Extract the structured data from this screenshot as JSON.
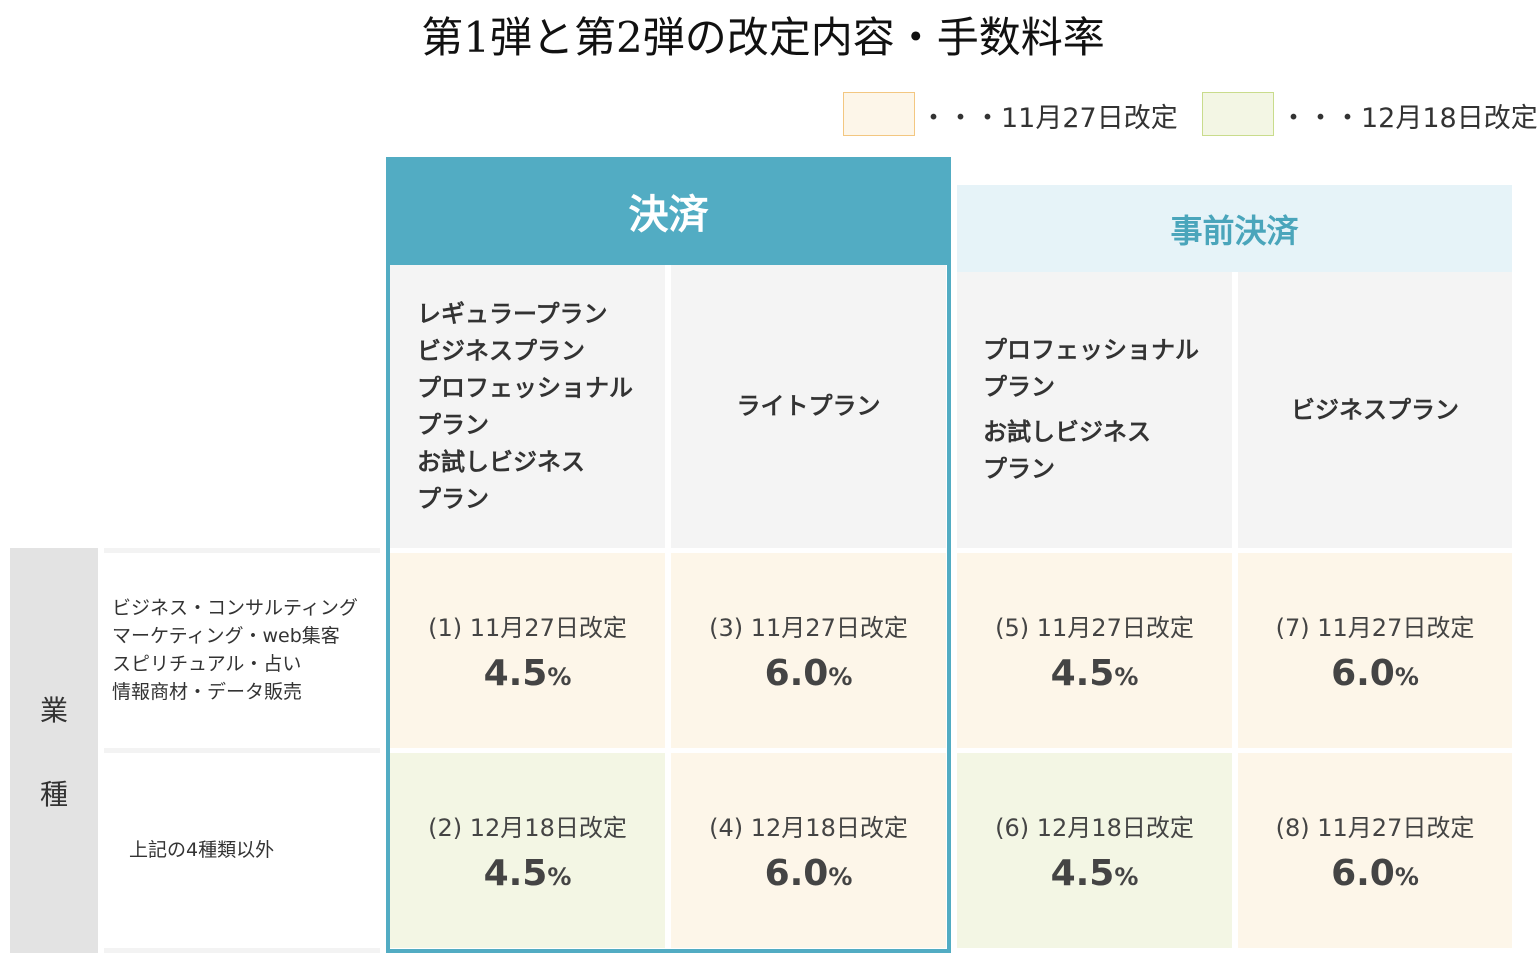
{
  "title": "第1弾と第2弾の改定内容・手数料率",
  "legend": [
    {
      "text": "・・・11月27日改定",
      "color": "#fdf6e9"
    },
    {
      "text": "・・・12月18日改定",
      "color": "#f3f6e4"
    }
  ],
  "groups": {
    "kessai": "決済",
    "jizen": "事前決済"
  },
  "plans": {
    "col1": [
      "レギュラープラン",
      "ビジネスプラン",
      "プロフェッショナル",
      "プラン",
      "お試しビジネス",
      "プラン"
    ],
    "col2": [
      "ライトプラン"
    ],
    "col3": [
      "プロフェッショナル",
      "プラン",
      "お試しビジネス",
      "プラン"
    ],
    "col4": [
      "ビジネスプラン"
    ]
  },
  "industry": {
    "label1": "業",
    "label2": "種",
    "row1": [
      "ビジネス・コンサルティング",
      "マーケティング・web集客",
      "スピリチュアル・占い",
      "情報商材・データ販売"
    ],
    "row2": "上記の4種類以外"
  },
  "cells": [
    {
      "label": "(1) 11月27日改定",
      "rate": "4.5",
      "unit": "%"
    },
    {
      "label": "(3) 11月27日改定",
      "rate": "6.0",
      "unit": "%"
    },
    {
      "label": "(5) 11月27日改定",
      "rate": "4.5",
      "unit": "%"
    },
    {
      "label": "(7) 11月27日改定",
      "rate": "6.0",
      "unit": "%"
    },
    {
      "label": "(2) 12月18日改定",
      "rate": "4.5",
      "unit": "%"
    },
    {
      "label": "(4) 12月18日改定",
      "rate": "6.0",
      "unit": "%"
    },
    {
      "label": "(6) 12月18日改定",
      "rate": "4.5",
      "unit": "%"
    },
    {
      "label": "(8) 11月27日改定",
      "rate": "6.0",
      "unit": "%"
    }
  ]
}
